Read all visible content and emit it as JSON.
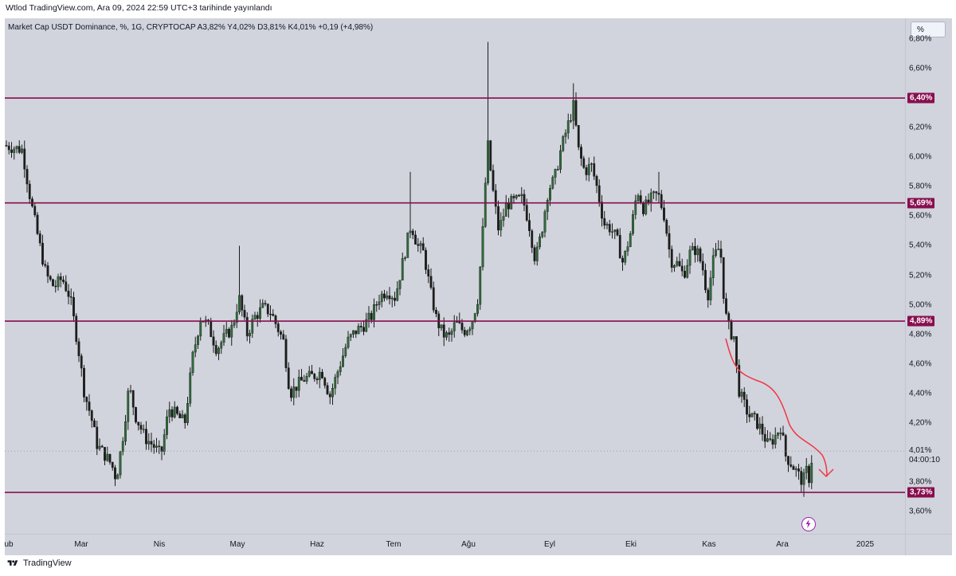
{
  "header": {
    "publish_line": "Wtlod TradingView.com, Ara 09, 2024 22:59 UTC+3 tarihinde yayınlandı"
  },
  "legend": {
    "text": "Market Cap USDT Dominance, %, 1G, CRYPTOCAP  A3,82%  Y4,02%  D3,81%  K4,01%  +0,19 (+4,98%)"
  },
  "scale_button": {
    "label": "%"
  },
  "footer": {
    "brand": "TradingView"
  },
  "colors": {
    "background": "#d1d4dc",
    "up_candle": "#2e6b3a",
    "down_candle": "#1c1c1c",
    "level_line": "#880e4f",
    "projection_arrow": "#f23645"
  },
  "chart_data": {
    "type": "candlestick",
    "title": "Market Cap USDT Dominance, %, 1G, CRYPTOCAP",
    "ylabel": "%",
    "ylim": [
      3.45,
      6.94
    ],
    "y_ticks": [
      "6,80%",
      "6,60%",
      "6,40%",
      "6,20%",
      "6,00%",
      "5,80%",
      "5,60%",
      "5,40%",
      "5,20%",
      "5,00%",
      "4,80%",
      "4,60%",
      "4,40%",
      "4,20%",
      "3,80%",
      "3,60%"
    ],
    "y_tick_values": [
      6.8,
      6.6,
      6.4,
      6.2,
      6.0,
      5.8,
      5.6,
      5.4,
      5.2,
      5.0,
      4.8,
      4.6,
      4.4,
      4.2,
      3.8,
      3.6
    ],
    "x_ticks": [
      "ub",
      "Mar",
      "Nis",
      "May",
      "Haz",
      "Tem",
      "Ağu",
      "Eyl",
      "Eki",
      "Kas",
      "Ara",
      "2025"
    ],
    "x_tick_positions": [
      5,
      96,
      194,
      292,
      392,
      488,
      582,
      684,
      786,
      884,
      976,
      1080
    ],
    "horizontal_levels": [
      {
        "value": 6.4,
        "label": "6,40%"
      },
      {
        "value": 5.69,
        "label": "5,69%"
      },
      {
        "value": 4.89,
        "label": "4,89%"
      },
      {
        "value": 3.73,
        "label": "3,73%"
      }
    ],
    "last": {
      "value": 4.01,
      "label": "4,01%",
      "countdown": "04:00:10"
    },
    "ohlc_last": {
      "open": 3.82,
      "high": 4.02,
      "low": 3.81,
      "close": 4.01,
      "change": "+0,19 (+4,98%)"
    },
    "close_path": [
      [
        0,
        6.08
      ],
      [
        22,
        6.05
      ],
      [
        32,
        5.72
      ],
      [
        42,
        5.45
      ],
      [
        52,
        5.2
      ],
      [
        62,
        5.12
      ],
      [
        72,
        5.18
      ],
      [
        82,
        5.05
      ],
      [
        92,
        4.72
      ],
      [
        100,
        4.4
      ],
      [
        108,
        4.25
      ],
      [
        116,
        4.05
      ],
      [
        126,
        3.98
      ],
      [
        134,
        3.92
      ],
      [
        140,
        3.82
      ],
      [
        148,
        4.1
      ],
      [
        156,
        4.45
      ],
      [
        164,
        4.25
      ],
      [
        176,
        4.1
      ],
      [
        186,
        4.05
      ],
      [
        196,
        3.98
      ],
      [
        206,
        4.3
      ],
      [
        216,
        4.25
      ],
      [
        226,
        4.2
      ],
      [
        236,
        4.65
      ],
      [
        246,
        4.92
      ],
      [
        256,
        4.85
      ],
      [
        266,
        4.7
      ],
      [
        276,
        4.78
      ],
      [
        286,
        4.85
      ],
      [
        294,
        5.05
      ],
      [
        304,
        4.8
      ],
      [
        314,
        4.92
      ],
      [
        324,
        4.98
      ],
      [
        334,
        4.95
      ],
      [
        342,
        4.85
      ],
      [
        350,
        4.75
      ],
      [
        358,
        4.4
      ],
      [
        366,
        4.45
      ],
      [
        376,
        4.5
      ],
      [
        388,
        4.52
      ],
      [
        398,
        4.55
      ],
      [
        408,
        4.38
      ],
      [
        418,
        4.55
      ],
      [
        430,
        4.75
      ],
      [
        440,
        4.82
      ],
      [
        450,
        4.86
      ],
      [
        460,
        4.92
      ],
      [
        470,
        5.05
      ],
      [
        480,
        5.1
      ],
      [
        490,
        5.05
      ],
      [
        500,
        5.3
      ],
      [
        510,
        5.55
      ],
      [
        518,
        5.4
      ],
      [
        526,
        5.35
      ],
      [
        534,
        5.1
      ],
      [
        542,
        4.9
      ],
      [
        550,
        4.8
      ],
      [
        558,
        4.78
      ],
      [
        566,
        4.88
      ],
      [
        576,
        4.82
      ],
      [
        586,
        4.88
      ],
      [
        594,
        5.05
      ],
      [
        600,
        5.5
      ],
      [
        606,
        6.1
      ],
      [
        612,
        5.8
      ],
      [
        620,
        5.5
      ],
      [
        630,
        5.68
      ],
      [
        640,
        5.7
      ],
      [
        650,
        5.72
      ],
      [
        658,
        5.55
      ],
      [
        666,
        5.3
      ],
      [
        674,
        5.5
      ],
      [
        682,
        5.78
      ],
      [
        690,
        5.85
      ],
      [
        698,
        6.05
      ],
      [
        706,
        6.2
      ],
      [
        714,
        6.35
      ],
      [
        720,
        6.05
      ],
      [
        728,
        5.9
      ],
      [
        736,
        5.95
      ],
      [
        744,
        5.78
      ],
      [
        752,
        5.55
      ],
      [
        760,
        5.52
      ],
      [
        768,
        5.45
      ],
      [
        776,
        5.28
      ],
      [
        786,
        5.5
      ],
      [
        794,
        5.78
      ],
      [
        802,
        5.65
      ],
      [
        812,
        5.72
      ],
      [
        820,
        5.75
      ],
      [
        828,
        5.6
      ],
      [
        836,
        5.3
      ],
      [
        844,
        5.28
      ],
      [
        852,
        5.2
      ],
      [
        860,
        5.35
      ],
      [
        868,
        5.38
      ],
      [
        876,
        5.25
      ],
      [
        882,
        5.05
      ],
      [
        890,
        5.32
      ],
      [
        898,
        5.4
      ],
      [
        904,
        4.95
      ],
      [
        910,
        4.82
      ],
      [
        916,
        4.78
      ],
      [
        920,
        4.45
      ],
      [
        926,
        4.35
      ],
      [
        934,
        4.25
      ],
      [
        942,
        4.22
      ],
      [
        950,
        4.15
      ],
      [
        958,
        4.05
      ],
      [
        966,
        4.1
      ],
      [
        974,
        4.18
      ],
      [
        980,
        3.98
      ],
      [
        988,
        3.92
      ],
      [
        996,
        3.85
      ],
      [
        1002,
        3.8
      ],
      [
        1006,
        3.88
      ],
      [
        1010,
        3.82
      ],
      [
        1014,
        4.01
      ]
    ],
    "spikes": [
      {
        "x": 606,
        "high": 6.78
      },
      {
        "x": 714,
        "high": 6.5
      },
      {
        "x": 508,
        "high": 5.9
      },
      {
        "x": 294,
        "high": 5.4
      },
      {
        "x": 820,
        "high": 5.9
      },
      {
        "x": 1002,
        "low": 3.7
      }
    ]
  }
}
